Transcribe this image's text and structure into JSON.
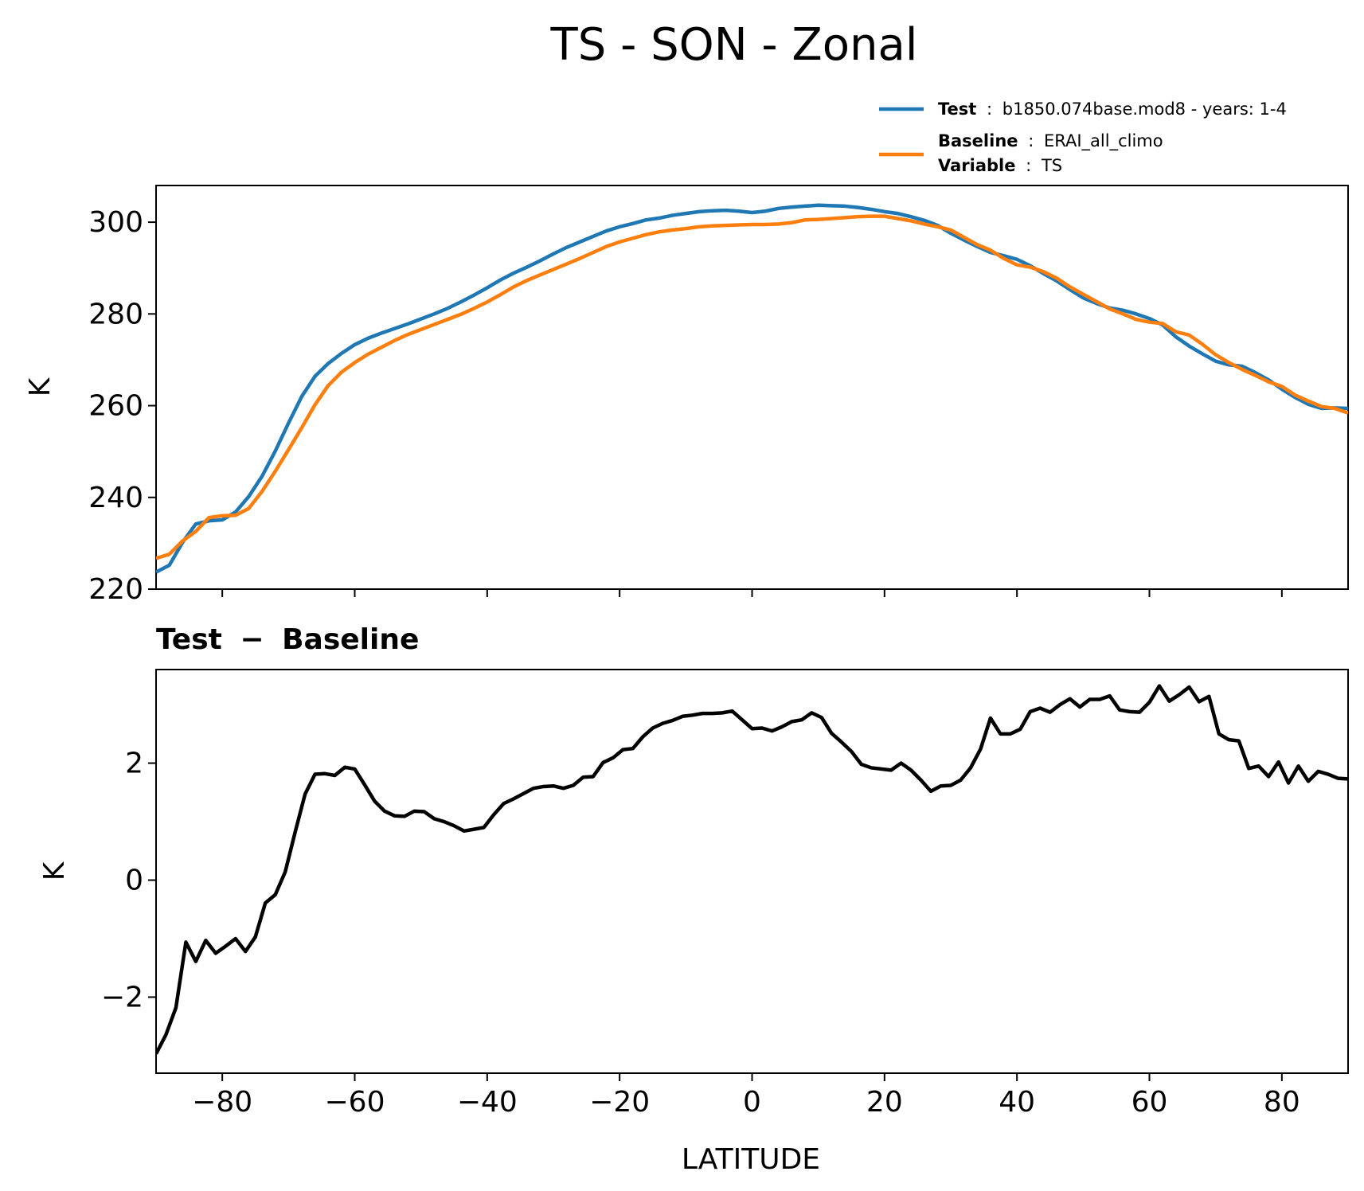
{
  "figure": {
    "title": "TS - SON - Zonal"
  },
  "legend": {
    "test_key": "Test",
    "test_value": "b1850.074base.mod8 - years: 1-4",
    "baseline_key": "Baseline",
    "baseline_value": "ERAI_all_climo",
    "variable_key": "Variable",
    "variable_value": "TS",
    "separator": ":"
  },
  "colors": {
    "test": "#1f77b4",
    "baseline": "#ff7f0e",
    "difference": "#000000"
  },
  "chart_data": [
    {
      "type": "line",
      "title": "",
      "xlabel": "",
      "ylabel": "K",
      "xlim": [
        -90,
        90
      ],
      "ylim": [
        220,
        308
      ],
      "xticks": [
        -80,
        -60,
        -40,
        -20,
        0,
        20,
        40,
        60,
        80
      ],
      "yticks": [
        220,
        240,
        260,
        280,
        300
      ],
      "ytick_labels": [
        "220",
        "240",
        "260",
        "280",
        "300"
      ],
      "legend_position": "top-right, above plot",
      "series": [
        {
          "name": "Test",
          "x": [
            -90,
            -88,
            -86,
            -84,
            -82,
            -80,
            -78,
            -76,
            -74,
            -72,
            -70,
            -68,
            -66,
            -64,
            -62,
            -60,
            -58,
            -56,
            -54,
            -52,
            -50,
            -48,
            -46,
            -44,
            -42,
            -40,
            -38,
            -36,
            -34,
            -32,
            -30,
            -28,
            -26,
            -24,
            -22,
            -20,
            -18,
            -16,
            -14,
            -12,
            -10,
            -8,
            -6,
            -4,
            -2,
            0,
            2,
            4,
            6,
            8,
            10,
            12,
            14,
            16,
            18,
            20,
            22,
            24,
            26,
            28,
            30,
            32,
            34,
            36,
            38,
            40,
            42,
            44,
            46,
            48,
            50,
            52,
            54,
            56,
            58,
            60,
            62,
            64,
            66,
            68,
            70,
            72,
            74,
            76,
            78,
            80,
            82,
            84,
            86,
            88,
            90
          ],
          "values": [
            223.7,
            225.2,
            230.2,
            234.2,
            234.9,
            235.1,
            236.8,
            240.2,
            244.6,
            250.1,
            256.2,
            262.0,
            266.4,
            269.2,
            271.4,
            273.3,
            274.7,
            275.8,
            276.8,
            277.8,
            278.9,
            280.0,
            281.2,
            282.6,
            284.1,
            285.7,
            287.4,
            288.9,
            290.2,
            291.6,
            293.1,
            294.5,
            295.7,
            296.9,
            298.1,
            299.0,
            299.7,
            300.5,
            300.9,
            301.5,
            301.9,
            302.3,
            302.5,
            302.6,
            302.4,
            302.1,
            302.4,
            303.0,
            303.3,
            303.5,
            303.7,
            303.6,
            303.5,
            303.2,
            302.8,
            302.3,
            301.9,
            301.2,
            300.4,
            299.3,
            297.6,
            296.1,
            294.7,
            293.4,
            292.7,
            291.9,
            290.5,
            288.8,
            287.2,
            285.3,
            283.5,
            282.3,
            281.3,
            280.8,
            280.0,
            279.0,
            277.6,
            275.0,
            273.0,
            271.3,
            269.7,
            268.9,
            268.6,
            267.2,
            265.6,
            263.6,
            261.8,
            260.3,
            259.4,
            259.5,
            259.4
          ]
        },
        {
          "name": "Baseline",
          "x": [
            -90,
            -88,
            -86,
            -84,
            -82,
            -80,
            -78,
            -76,
            -74,
            -72,
            -70,
            -68,
            -66,
            -64,
            -62,
            -60,
            -58,
            -56,
            -54,
            -52,
            -50,
            -48,
            -46,
            -44,
            -42,
            -40,
            -38,
            -36,
            -34,
            -32,
            -30,
            -28,
            -26,
            -24,
            -22,
            -20,
            -18,
            -16,
            -14,
            -12,
            -10,
            -8,
            -6,
            -4,
            -2,
            0,
            2,
            4,
            6,
            8,
            10,
            12,
            14,
            16,
            18,
            20,
            22,
            24,
            26,
            28,
            30,
            32,
            34,
            36,
            38,
            40,
            42,
            44,
            46,
            48,
            50,
            52,
            54,
            56,
            58,
            60,
            62,
            64,
            66,
            68,
            70,
            72,
            74,
            76,
            78,
            80,
            82,
            84,
            86,
            88,
            90
          ],
          "values": [
            226.7,
            227.6,
            230.5,
            232.6,
            235.6,
            236.0,
            236.1,
            237.6,
            241.3,
            245.7,
            250.4,
            255.2,
            260.2,
            264.4,
            267.3,
            269.4,
            271.2,
            272.7,
            274.2,
            275.5,
            276.6,
            277.7,
            278.8,
            279.9,
            281.2,
            282.6,
            284.2,
            285.9,
            287.3,
            288.5,
            289.7,
            290.9,
            292.1,
            293.4,
            294.7,
            295.7,
            296.5,
            297.3,
            297.9,
            298.3,
            298.6,
            299.0,
            299.2,
            299.3,
            299.4,
            299.5,
            299.5,
            299.6,
            299.9,
            300.5,
            300.6,
            300.8,
            301.0,
            301.2,
            301.3,
            301.3,
            300.8,
            300.3,
            299.6,
            299.0,
            298.3,
            296.7,
            295.1,
            293.9,
            292.1,
            290.7,
            290.2,
            289.2,
            287.8,
            285.9,
            284.3,
            282.7,
            281.1,
            280.0,
            278.8,
            278.2,
            277.9,
            276.1,
            275.4,
            273.4,
            271.1,
            269.4,
            267.9,
            266.6,
            265.2,
            264.2,
            262.3,
            261.0,
            259.8,
            259.4,
            258.4
          ]
        }
      ]
    },
    {
      "type": "line",
      "title": "Test − Baseline",
      "title_bold": "Test",
      "title_operator": "−",
      "title_bold2": "Baseline",
      "xlabel": "LATITUDE",
      "ylabel": "K",
      "xlim": [
        -90,
        90
      ],
      "ylim": [
        -3.3,
        3.6
      ],
      "xticks": [
        -80,
        -60,
        -40,
        -20,
        0,
        20,
        40,
        60,
        80
      ],
      "xtick_labels": [
        "−80",
        "−60",
        "−40",
        "−20",
        "0",
        "20",
        "40",
        "60",
        "80"
      ],
      "yticks": [
        -2,
        0,
        2
      ],
      "ytick_labels": [
        "−2",
        "0",
        "2"
      ],
      "series": [
        {
          "name": "Test - Baseline",
          "x": [
            -90,
            -88.5,
            -87,
            -85.5,
            -84,
            -82.5,
            -81,
            -79.5,
            -78,
            -76.5,
            -75,
            -73.5,
            -72,
            -70.5,
            -69,
            -67.5,
            -66,
            -64.5,
            -63,
            -61.5,
            -60,
            -58.5,
            -57,
            -55.5,
            -54,
            -52.5,
            -51,
            -49.5,
            -48,
            -46.5,
            -45,
            -43.5,
            -42,
            -40.5,
            -39,
            -37.5,
            -36,
            -34.5,
            -33,
            -31.5,
            -30,
            -28.5,
            -27,
            -25.5,
            -24,
            -22.5,
            -21,
            -19.5,
            -18,
            -16.5,
            -15,
            -13.5,
            -12,
            -10.5,
            -9,
            -7.5,
            -6,
            -4.5,
            -3,
            -1.5,
            0,
            1.5,
            3,
            4.5,
            6,
            7.5,
            9,
            10.5,
            12,
            13.5,
            15,
            16.5,
            18,
            19.5,
            21,
            22.5,
            24,
            25.5,
            27,
            28.5,
            30,
            31.5,
            33,
            34.5,
            36,
            37.5,
            39,
            40.5,
            42,
            43.5,
            45,
            46.5,
            48,
            49.5,
            51,
            52.5,
            54,
            55.5,
            57,
            58.5,
            60,
            61.5,
            63,
            64.5,
            66,
            67.5,
            69,
            70.5,
            72,
            73.5,
            75,
            76.5,
            78,
            79.5,
            81,
            82.5,
            84,
            85.5,
            87,
            88.5,
            90
          ],
          "values": [
            -2.97,
            -2.64,
            -2.18,
            -1.06,
            -1.39,
            -1.03,
            -1.25,
            -1.13,
            -1.0,
            -1.22,
            -0.97,
            -0.39,
            -0.25,
            0.14,
            0.82,
            1.47,
            1.81,
            1.82,
            1.79,
            1.93,
            1.9,
            1.63,
            1.35,
            1.18,
            1.1,
            1.09,
            1.18,
            1.17,
            1.05,
            1.0,
            0.93,
            0.84,
            0.87,
            0.9,
            1.12,
            1.31,
            1.39,
            1.48,
            1.57,
            1.6,
            1.61,
            1.57,
            1.62,
            1.76,
            1.77,
            2.01,
            2.09,
            2.23,
            2.25,
            2.45,
            2.6,
            2.68,
            2.73,
            2.8,
            2.82,
            2.85,
            2.85,
            2.86,
            2.89,
            2.74,
            2.59,
            2.6,
            2.55,
            2.62,
            2.71,
            2.74,
            2.86,
            2.78,
            2.51,
            2.36,
            2.2,
            1.98,
            1.92,
            1.9,
            1.88,
            2.0,
            1.88,
            1.71,
            1.52,
            1.61,
            1.62,
            1.71,
            1.92,
            2.24,
            2.77,
            2.5,
            2.5,
            2.58,
            2.88,
            2.94,
            2.87,
            3.0,
            3.1,
            2.96,
            3.09,
            3.09,
            3.15,
            2.91,
            2.88,
            2.87,
            3.04,
            3.32,
            3.06,
            3.17,
            3.3,
            3.05,
            3.14,
            2.5,
            2.4,
            2.38,
            1.91,
            1.95,
            1.77,
            2.02,
            1.66,
            1.95,
            1.69,
            1.86,
            1.81,
            1.74,
            1.73
          ]
        }
      ]
    }
  ]
}
